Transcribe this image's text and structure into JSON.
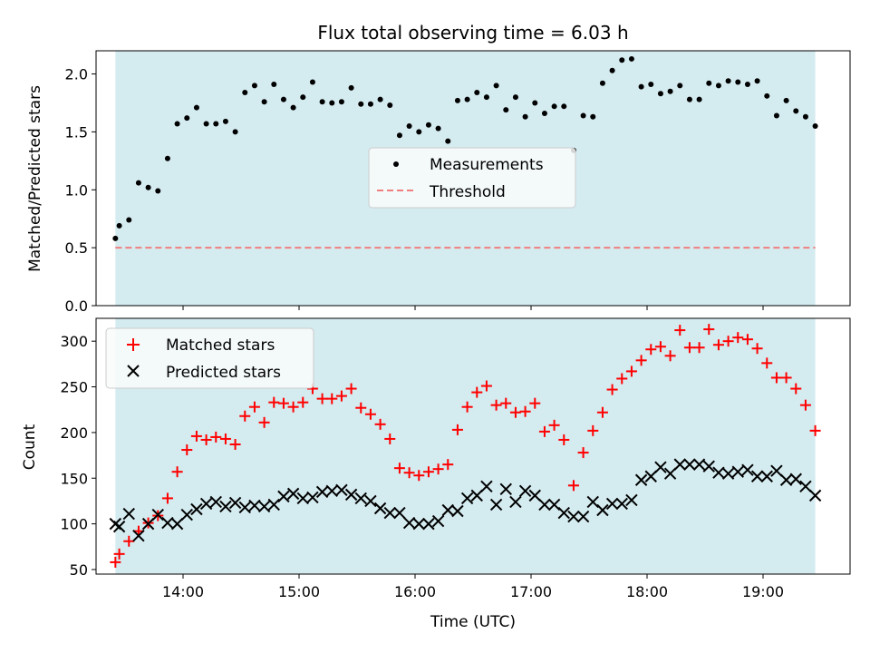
{
  "figure_title": "Flux total observing time = 6.03 h",
  "colors": {
    "background_band": "#d4ebf0",
    "measurement": "#000000",
    "threshold": "#f08080",
    "matched": "#ff0000",
    "predicted": "#000000"
  },
  "chart_data": [
    {
      "type": "scatter",
      "title": "Flux total observing time = 6.03 h",
      "xlabel": "",
      "ylabel": "Matched/Predicted stars",
      "xlim": [
        "13:15",
        "19:45"
      ],
      "ylim": [
        0,
        2.2
      ],
      "yticks": [
        0.0,
        0.5,
        1.0,
        1.5,
        2.0
      ],
      "ytick_labels": [
        "0.0",
        "0.5",
        "1.0",
        "1.5",
        "2.0"
      ],
      "shaded_span": [
        "13:25",
        "19:27"
      ],
      "legend_position": "center",
      "series": [
        {
          "name": "Measurements",
          "marker": "dot",
          "x": [
            "13:25",
            "13:27",
            "13:32",
            "13:37",
            "13:42",
            "13:47",
            "13:52",
            "13:57",
            "14:02",
            "14:07",
            "14:12",
            "14:17",
            "14:22",
            "14:27",
            "14:32",
            "14:37",
            "14:42",
            "14:47",
            "14:52",
            "14:57",
            "15:02",
            "15:07",
            "15:12",
            "15:17",
            "15:22",
            "15:27",
            "15:32",
            "15:37",
            "15:42",
            "15:47",
            "15:52",
            "15:57",
            "16:02",
            "16:07",
            "16:12",
            "16:17",
            "16:22",
            "16:27",
            "16:32",
            "16:37",
            "16:42",
            "16:47",
            "16:52",
            "16:57",
            "17:02",
            "17:07",
            "17:12",
            "17:17",
            "17:22",
            "17:27",
            "17:32",
            "17:37",
            "17:42",
            "17:47",
            "17:52",
            "17:57",
            "18:02",
            "18:07",
            "18:12",
            "18:17",
            "18:22",
            "18:27",
            "18:32",
            "18:37",
            "18:42",
            "18:47",
            "18:52",
            "18:57",
            "19:02",
            "19:07",
            "19:12",
            "19:17",
            "19:22",
            "19:27"
          ],
          "y": [
            0.58,
            0.69,
            0.74,
            1.06,
            1.02,
            0.99,
            1.27,
            1.57,
            1.62,
            1.71,
            1.57,
            1.57,
            1.59,
            1.5,
            1.84,
            1.9,
            1.76,
            1.91,
            1.78,
            1.71,
            1.8,
            1.93,
            1.76,
            1.75,
            1.76,
            1.88,
            1.74,
            1.74,
            1.78,
            1.73,
            1.47,
            1.55,
            1.5,
            1.56,
            1.53,
            1.42,
            1.77,
            1.78,
            1.84,
            1.8,
            1.9,
            1.69,
            1.8,
            1.63,
            1.75,
            1.66,
            1.72,
            1.72,
            1.34,
            1.64,
            1.63,
            1.92,
            2.03,
            2.12,
            2.13,
            1.89,
            1.91,
            1.83,
            1.85,
            1.9,
            1.78,
            1.78,
            1.92,
            1.9,
            1.94,
            1.93,
            1.91,
            1.94,
            1.81,
            1.64,
            1.77,
            1.68,
            1.63,
            1.55
          ]
        },
        {
          "name": "Threshold",
          "style": "dashed",
          "x": [
            "13:25",
            "19:27"
          ],
          "y": [
            0.5,
            0.5
          ]
        }
      ]
    },
    {
      "type": "scatter",
      "xlabel": "Time (UTC)",
      "ylabel": "Count",
      "xlim": [
        "13:15",
        "19:45"
      ],
      "ylim": [
        45,
        325
      ],
      "yticks": [
        50,
        100,
        150,
        200,
        250,
        300
      ],
      "ytick_labels": [
        "50",
        "100",
        "150",
        "200",
        "250",
        "300"
      ],
      "xticks": [
        "14:00",
        "15:00",
        "16:00",
        "17:00",
        "18:00",
        "19:00"
      ],
      "xtick_labels": [
        "14:00",
        "15:00",
        "16:00",
        "17:00",
        "18:00",
        "19:00"
      ],
      "shaded_span": [
        "13:25",
        "19:27"
      ],
      "legend_position": "upper left",
      "series": [
        {
          "name": "Matched stars",
          "marker": "plus",
          "x": [
            "13:25",
            "13:27",
            "13:32",
            "13:37",
            "13:42",
            "13:47",
            "13:52",
            "13:57",
            "14:02",
            "14:07",
            "14:12",
            "14:17",
            "14:22",
            "14:27",
            "14:32",
            "14:37",
            "14:42",
            "14:47",
            "14:52",
            "14:57",
            "15:02",
            "15:07",
            "15:12",
            "15:17",
            "15:22",
            "15:27",
            "15:32",
            "15:37",
            "15:42",
            "15:47",
            "15:52",
            "15:57",
            "16:02",
            "16:07",
            "16:12",
            "16:17",
            "16:22",
            "16:27",
            "16:32",
            "16:37",
            "16:42",
            "16:47",
            "16:52",
            "16:57",
            "17:02",
            "17:07",
            "17:12",
            "17:17",
            "17:22",
            "17:27",
            "17:32",
            "17:37",
            "17:42",
            "17:47",
            "17:52",
            "17:57",
            "18:02",
            "18:07",
            "18:12",
            "18:17",
            "18:22",
            "18:27",
            "18:32",
            "18:37",
            "18:42",
            "18:47",
            "18:52",
            "18:57",
            "19:02",
            "19:07",
            "19:12",
            "19:17",
            "19:22",
            "19:27"
          ],
          "y": [
            58,
            67,
            81,
            92,
            101,
            109,
            128,
            157,
            181,
            196,
            192,
            195,
            193,
            187,
            218,
            228,
            211,
            233,
            232,
            228,
            233,
            248,
            237,
            237,
            240,
            248,
            227,
            220,
            209,
            193,
            161,
            156,
            153,
            157,
            160,
            165,
            203,
            228,
            244,
            251,
            230,
            232,
            222,
            223,
            232,
            201,
            208,
            192,
            142,
            178,
            202,
            222,
            247,
            259,
            267,
            279,
            291,
            294,
            284,
            312,
            293,
            293,
            313,
            296,
            300,
            304,
            302,
            292,
            276,
            260,
            260,
            248,
            230,
            202
          ]
        },
        {
          "name": "Predicted stars",
          "marker": "x",
          "x": [
            "13:25",
            "13:27",
            "13:32",
            "13:37",
            "13:42",
            "13:47",
            "13:52",
            "13:57",
            "14:02",
            "14:07",
            "14:12",
            "14:17",
            "14:22",
            "14:27",
            "14:32",
            "14:37",
            "14:42",
            "14:47",
            "14:52",
            "14:57",
            "15:02",
            "15:07",
            "15:12",
            "15:17",
            "15:22",
            "15:27",
            "15:32",
            "15:37",
            "15:42",
            "15:47",
            "15:52",
            "15:57",
            "16:02",
            "16:07",
            "16:12",
            "16:17",
            "16:22",
            "16:27",
            "16:32",
            "16:37",
            "16:42",
            "16:47",
            "16:52",
            "16:57",
            "17:02",
            "17:07",
            "17:12",
            "17:17",
            "17:22",
            "17:27",
            "17:32",
            "17:37",
            "17:42",
            "17:47",
            "17:52",
            "17:57",
            "18:02",
            "18:07",
            "18:12",
            "18:17",
            "18:22",
            "18:27",
            "18:32",
            "18:37",
            "18:42",
            "18:47",
            "18:52",
            "18:57",
            "19:02",
            "19:07",
            "19:12",
            "19:17",
            "19:22",
            "19:27"
          ],
          "y": [
            100,
            97,
            111,
            87,
            100,
            110,
            101,
            100,
            110,
            116,
            122,
            124,
            119,
            123,
            118,
            120,
            119,
            121,
            130,
            133,
            128,
            129,
            135,
            136,
            137,
            132,
            128,
            125,
            117,
            112,
            112,
            101,
            100,
            100,
            103,
            115,
            114,
            128,
            131,
            141,
            121,
            138,
            124,
            136,
            131,
            121,
            121,
            112,
            108,
            108,
            124,
            115,
            122,
            122,
            126,
            148,
            152,
            162,
            155,
            165,
            165,
            165,
            163,
            156,
            155,
            157,
            159,
            152,
            152,
            158,
            148,
            149,
            141,
            131
          ]
        }
      ]
    }
  ]
}
